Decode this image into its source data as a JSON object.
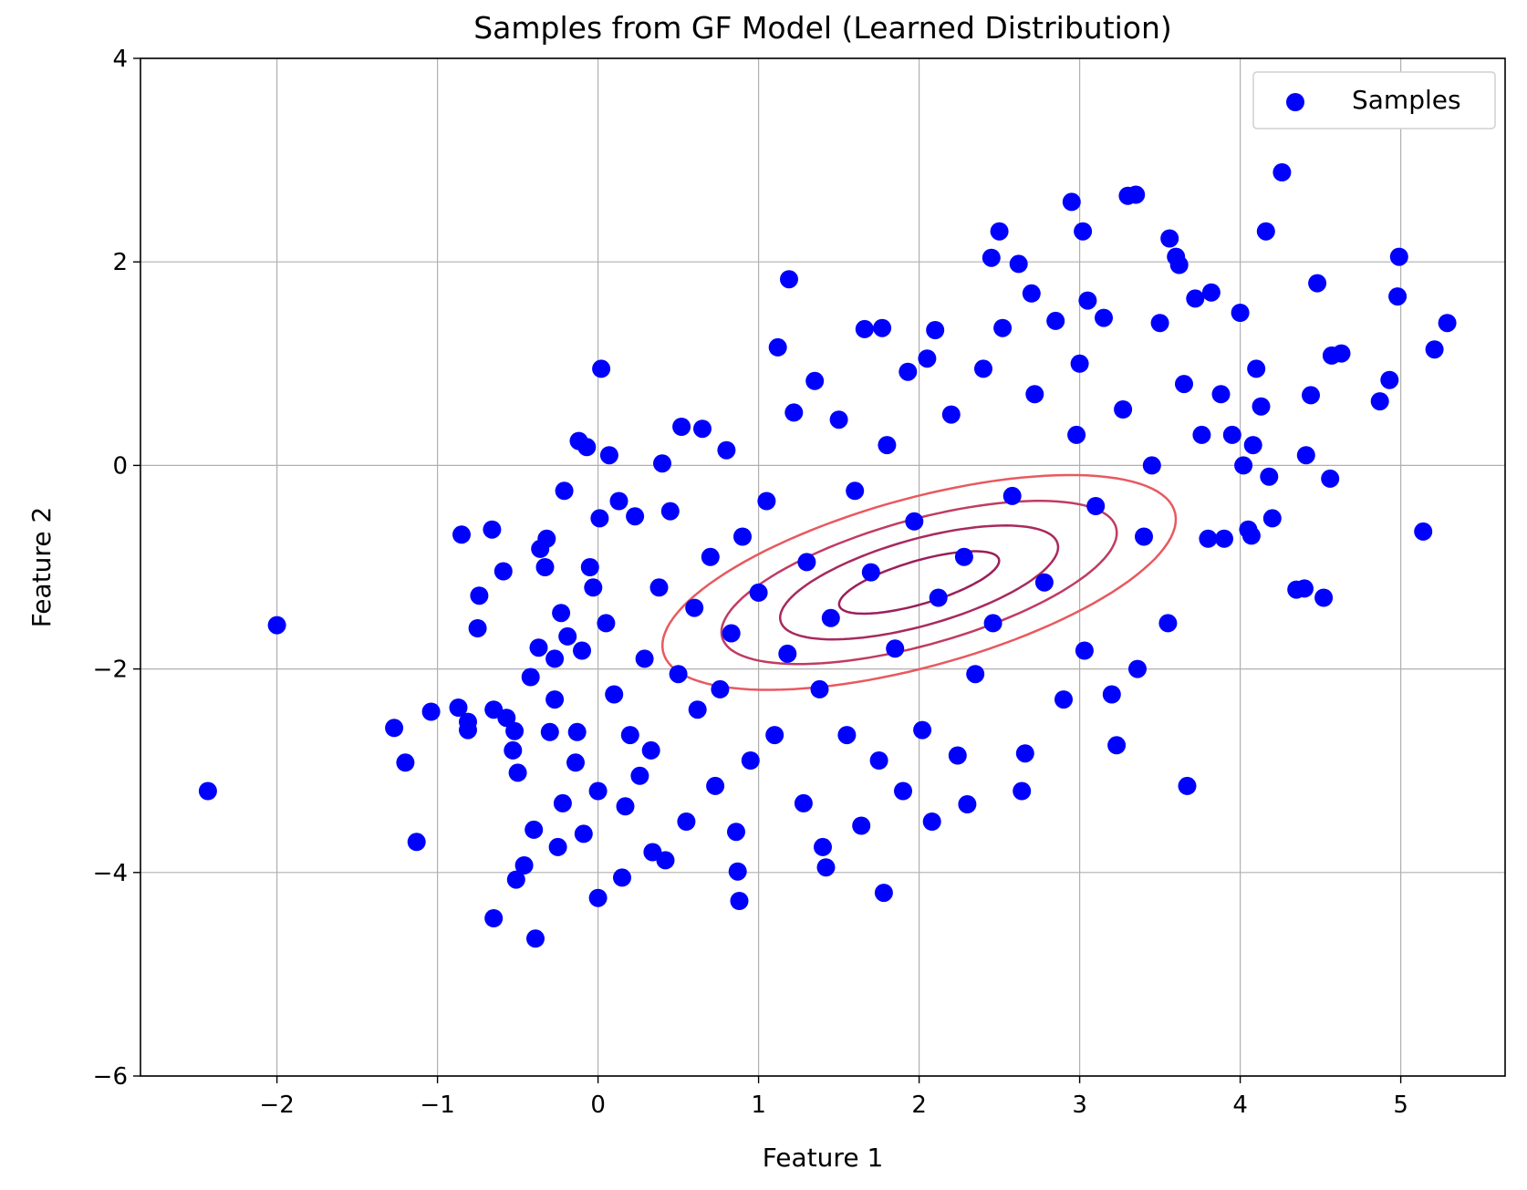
{
  "chart_data": {
    "type": "scatter",
    "title": "Samples from GF Model (Learned Distribution)",
    "xlabel": "Feature 1",
    "ylabel": "Feature 2",
    "xlim": [
      -2.85,
      5.65
    ],
    "ylim": [
      -6,
      4
    ],
    "xticks": [
      -2,
      -1,
      0,
      1,
      2,
      3,
      4,
      5
    ],
    "yticks": [
      -6,
      -4,
      -2,
      0,
      2,
      4
    ],
    "xtick_labels": [
      "−2",
      "−1",
      "0",
      "1",
      "2",
      "3",
      "4",
      "5"
    ],
    "ytick_labels": [
      "−6",
      "−4",
      "−2",
      "0",
      "2",
      "4"
    ],
    "grid": true,
    "legend": {
      "position": "top-right",
      "entries": [
        "Samples"
      ]
    },
    "colors": {
      "points": "#0000ff",
      "contour": "#e8595f",
      "grid": "#b0b0b0"
    },
    "series": [
      {
        "name": "Samples",
        "type": "scatter",
        "points": [
          [
            -2.43,
            -3.2
          ],
          [
            -2.0,
            -1.57
          ],
          [
            -1.27,
            -2.58
          ],
          [
            -1.2,
            -2.92
          ],
          [
            -1.13,
            -3.7
          ],
          [
            -1.04,
            -2.42
          ],
          [
            -0.87,
            -2.38
          ],
          [
            -0.85,
            -0.68
          ],
          [
            -0.81,
            -2.6
          ],
          [
            -0.81,
            -2.52
          ],
          [
            -0.75,
            -1.6
          ],
          [
            -0.74,
            -1.28
          ],
          [
            -0.66,
            -0.63
          ],
          [
            -0.65,
            -2.4
          ],
          [
            -0.65,
            -4.45
          ],
          [
            -0.59,
            -1.04
          ],
          [
            -0.57,
            -2.48
          ],
          [
            -0.53,
            -2.8
          ],
          [
            -0.52,
            -2.61
          ],
          [
            -0.51,
            -4.07
          ],
          [
            -0.5,
            -3.02
          ],
          [
            -0.46,
            -3.93
          ],
          [
            -0.42,
            -2.08
          ],
          [
            -0.4,
            -3.58
          ],
          [
            -0.39,
            -4.65
          ],
          [
            -0.37,
            -1.79
          ],
          [
            -0.36,
            -0.82
          ],
          [
            -0.33,
            -1.0
          ],
          [
            -0.32,
            -0.72
          ],
          [
            -0.3,
            -2.62
          ],
          [
            -0.27,
            -2.3
          ],
          [
            -0.27,
            -1.9
          ],
          [
            -0.25,
            -3.75
          ],
          [
            -0.23,
            -1.45
          ],
          [
            -0.22,
            -3.32
          ],
          [
            -0.21,
            -0.25
          ],
          [
            -0.19,
            -1.68
          ],
          [
            -0.14,
            -2.92
          ],
          [
            -0.13,
            -2.62
          ],
          [
            -0.12,
            0.24
          ],
          [
            -0.1,
            -1.82
          ],
          [
            -0.09,
            -3.62
          ],
          [
            -0.07,
            0.18
          ],
          [
            -0.05,
            -1.0
          ],
          [
            -0.03,
            -1.2
          ],
          [
            0.0,
            -4.25
          ],
          [
            0.0,
            -3.2
          ],
          [
            0.01,
            -0.52
          ],
          [
            0.02,
            0.95
          ],
          [
            0.05,
            -1.55
          ],
          [
            0.07,
            0.1
          ],
          [
            0.1,
            -2.25
          ],
          [
            0.13,
            -0.35
          ],
          [
            0.15,
            -4.05
          ],
          [
            0.17,
            -3.35
          ],
          [
            0.2,
            -2.65
          ],
          [
            0.23,
            -0.5
          ],
          [
            0.26,
            -3.05
          ],
          [
            0.29,
            -1.9
          ],
          [
            0.33,
            -2.8
          ],
          [
            0.34,
            -3.8
          ],
          [
            0.38,
            -1.2
          ],
          [
            0.4,
            0.02
          ],
          [
            0.42,
            -3.88
          ],
          [
            0.45,
            -0.45
          ],
          [
            0.5,
            -2.05
          ],
          [
            0.52,
            0.38
          ],
          [
            0.55,
            -3.5
          ],
          [
            0.6,
            -1.4
          ],
          [
            0.62,
            -2.4
          ],
          [
            0.65,
            0.36
          ],
          [
            0.7,
            -0.9
          ],
          [
            0.73,
            -3.15
          ],
          [
            0.76,
            -2.2
          ],
          [
            0.8,
            0.15
          ],
          [
            0.83,
            -1.65
          ],
          [
            0.86,
            -3.6
          ],
          [
            0.87,
            -3.99
          ],
          [
            0.88,
            -4.28
          ],
          [
            0.9,
            -0.7
          ],
          [
            0.95,
            -2.9
          ],
          [
            1.0,
            -1.25
          ],
          [
            1.05,
            -0.35
          ],
          [
            1.1,
            -2.65
          ],
          [
            1.12,
            1.16
          ],
          [
            1.18,
            -1.85
          ],
          [
            1.19,
            1.83
          ],
          [
            1.22,
            0.52
          ],
          [
            1.28,
            -3.32
          ],
          [
            1.3,
            -0.95
          ],
          [
            1.35,
            0.83
          ],
          [
            1.38,
            -2.2
          ],
          [
            1.4,
            -3.75
          ],
          [
            1.42,
            -3.95
          ],
          [
            1.45,
            -1.5
          ],
          [
            1.5,
            0.45
          ],
          [
            1.55,
            -2.65
          ],
          [
            1.6,
            -0.25
          ],
          [
            1.64,
            -3.54
          ],
          [
            1.66,
            1.34
          ],
          [
            1.7,
            -1.05
          ],
          [
            1.75,
            -2.9
          ],
          [
            1.77,
            1.35
          ],
          [
            1.78,
            -4.2
          ],
          [
            1.8,
            0.2
          ],
          [
            1.85,
            -1.8
          ],
          [
            1.9,
            -3.2
          ],
          [
            1.93,
            0.92
          ],
          [
            1.97,
            -0.55
          ],
          [
            2.02,
            -2.6
          ],
          [
            2.05,
            1.05
          ],
          [
            2.08,
            -3.5
          ],
          [
            2.1,
            1.33
          ],
          [
            2.12,
            -1.3
          ],
          [
            2.2,
            0.5
          ],
          [
            2.24,
            -2.85
          ],
          [
            2.28,
            -0.9
          ],
          [
            2.3,
            -3.33
          ],
          [
            2.35,
            -2.05
          ],
          [
            2.4,
            0.95
          ],
          [
            2.45,
            2.04
          ],
          [
            2.46,
            -1.55
          ],
          [
            2.5,
            2.3
          ],
          [
            2.52,
            1.35
          ],
          [
            2.58,
            -0.3
          ],
          [
            2.62,
            1.98
          ],
          [
            2.64,
            -3.2
          ],
          [
            2.66,
            -2.83
          ],
          [
            2.7,
            1.69
          ],
          [
            2.72,
            0.7
          ],
          [
            2.78,
            -1.15
          ],
          [
            2.85,
            1.42
          ],
          [
            2.9,
            -2.3
          ],
          [
            2.95,
            2.59
          ],
          [
            2.98,
            0.3
          ],
          [
            3.0,
            1.0
          ],
          [
            3.02,
            2.3
          ],
          [
            3.03,
            -1.82
          ],
          [
            3.05,
            1.62
          ],
          [
            3.1,
            -0.4
          ],
          [
            3.15,
            1.45
          ],
          [
            3.2,
            -2.25
          ],
          [
            3.23,
            -2.75
          ],
          [
            3.27,
            0.55
          ],
          [
            3.3,
            2.65
          ],
          [
            3.35,
            2.66
          ],
          [
            3.36,
            -2.0
          ],
          [
            3.4,
            -0.7
          ],
          [
            3.45,
            0.0
          ],
          [
            3.5,
            1.4
          ],
          [
            3.55,
            -1.55
          ],
          [
            3.56,
            2.23
          ],
          [
            3.6,
            2.05
          ],
          [
            3.62,
            1.97
          ],
          [
            3.65,
            0.8
          ],
          [
            3.67,
            -3.15
          ],
          [
            3.72,
            1.64
          ],
          [
            3.76,
            0.3
          ],
          [
            3.8,
            -0.72
          ],
          [
            3.82,
            1.7
          ],
          [
            3.88,
            0.7
          ],
          [
            3.9,
            -0.72
          ],
          [
            3.95,
            0.3
          ],
          [
            4.0,
            1.5
          ],
          [
            4.02,
            0.0
          ],
          [
            4.05,
            -0.63
          ],
          [
            4.07,
            -0.69
          ],
          [
            4.08,
            0.2
          ],
          [
            4.1,
            0.95
          ],
          [
            4.13,
            0.58
          ],
          [
            4.16,
            2.3
          ],
          [
            4.18,
            -0.11
          ],
          [
            4.2,
            -0.52
          ],
          [
            4.26,
            2.88
          ],
          [
            4.35,
            -1.22
          ],
          [
            4.4,
            -1.21
          ],
          [
            4.41,
            0.1
          ],
          [
            4.44,
            0.69
          ],
          [
            4.48,
            1.79
          ],
          [
            4.52,
            -1.3
          ],
          [
            4.56,
            -0.13
          ],
          [
            4.57,
            1.08
          ],
          [
            4.63,
            1.1
          ],
          [
            4.87,
            0.63
          ],
          [
            4.93,
            0.84
          ],
          [
            4.98,
            1.66
          ],
          [
            4.99,
            2.05
          ],
          [
            5.14,
            -0.65
          ],
          [
            5.21,
            1.14
          ],
          [
            5.29,
            1.4
          ]
        ]
      }
    ],
    "contour": {
      "center": [
        2.0,
        -1.15
      ],
      "angle_deg": 27,
      "semi_axes": [
        [
          0.55,
          0.2
        ],
        [
          0.95,
          0.4
        ],
        [
          1.35,
          0.58
        ],
        [
          1.75,
          0.78
        ]
      ]
    }
  }
}
